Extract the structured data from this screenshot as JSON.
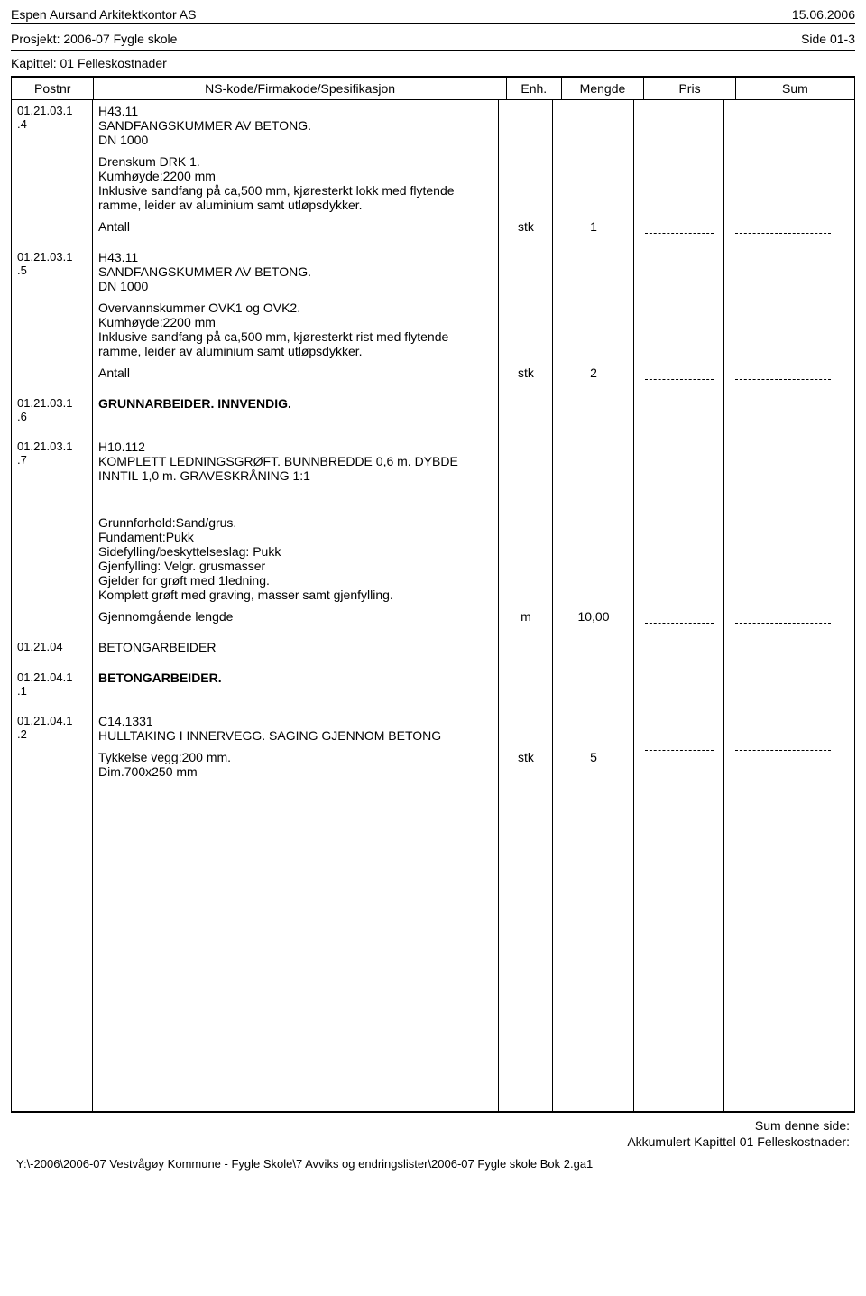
{
  "header": {
    "company": "Espen Aursand Arkitektkontor AS",
    "date": "15.06.2006",
    "project": "Prosjekt: 2006-07 Fygle skole",
    "page": "Side 01-3",
    "chapter": "Kapittel: 01 Felleskostnader"
  },
  "columns": {
    "postnr": "Postnr",
    "spec": "NS-kode/Firmakode/Spesifikasjon",
    "enh": "Enh.",
    "mengde": "Mengde",
    "pris": "Pris",
    "sum": "Sum"
  },
  "rows": [
    {
      "postnr": "01.21.03.1.4",
      "title": "H43.11\nSANDFANGSKUMMER AV BETONG.\nDN 1000",
      "desc": "Drenskum DRK 1.\nKumhøyde:2200 mm\nInklusive sandfang på ca,500 mm, kjøresterkt lokk med flytende ramme, leider av aluminium samt utløpsdykker.",
      "measure_label": "Antall",
      "enh": "stk",
      "mengde": "1",
      "dashed": true
    },
    {
      "postnr": "01.21.03.1.5",
      "title": "H43.11\nSANDFANGSKUMMER AV BETONG.\nDN 1000",
      "desc": "Overvannskummer OVK1 og OVK2.\nKumhøyde:2200 mm\nInklusive sandfang på ca,500 mm, kjøresterkt rist med flytende ramme, leider av aluminium samt utløpsdykker.",
      "measure_label": "Antall",
      "enh": "stk",
      "mengde": "2",
      "dashed": true
    },
    {
      "postnr": "01.21.03.1.6",
      "title": "GRUNNARBEIDER. INNVENDIG.",
      "bold": true
    },
    {
      "postnr": "01.21.03.1.7",
      "title": "H10.112\nKOMPLETT LEDNINGSGRØFT. BUNNBREDDE 0,6 m. DYBDE INNTIL 1,0 m. GRAVESKRÅNING 1:1",
      "desc": "Grunnforhold:Sand/grus.\nFundament:Pukk\nSidefylling/beskyttelseslag: Pukk\nGjenfylling: Velgr. grusmasser\nGjelder for grøft med 1ledning.\nKomplett grøft med graving, masser samt gjenfylling.",
      "measure_label": "Gjennomgående lengde",
      "enh": "m",
      "mengde": "10,00",
      "dashed": true,
      "gap_before_desc": true
    },
    {
      "postnr": "01.21.04",
      "title": "BETONGARBEIDER"
    },
    {
      "postnr": "01.21.04.1.1",
      "title": "BETONGARBEIDER.",
      "bold": true
    },
    {
      "postnr": "01.21.04.1.2",
      "title": "C14.1331\nHULLTAKING I INNERVEGG. SAGING GJENNOM BETONG",
      "desc": "Tykkelse vegg:200 mm.\nDim.700x250 mm",
      "inline_measure": true,
      "enh": "stk",
      "mengde": "5",
      "dashed": true
    }
  ],
  "footer": {
    "sum_line": "Sum denne side:",
    "akk_line": "Akkumulert Kapittel 01 Felleskostnader:",
    "filepath": "Y:\\-2006\\2006-07 Vestvågøy Kommune - Fygle Skole\\7 Avviks og endringslister\\2006-07 Fygle skole Bok 2.ga1"
  }
}
